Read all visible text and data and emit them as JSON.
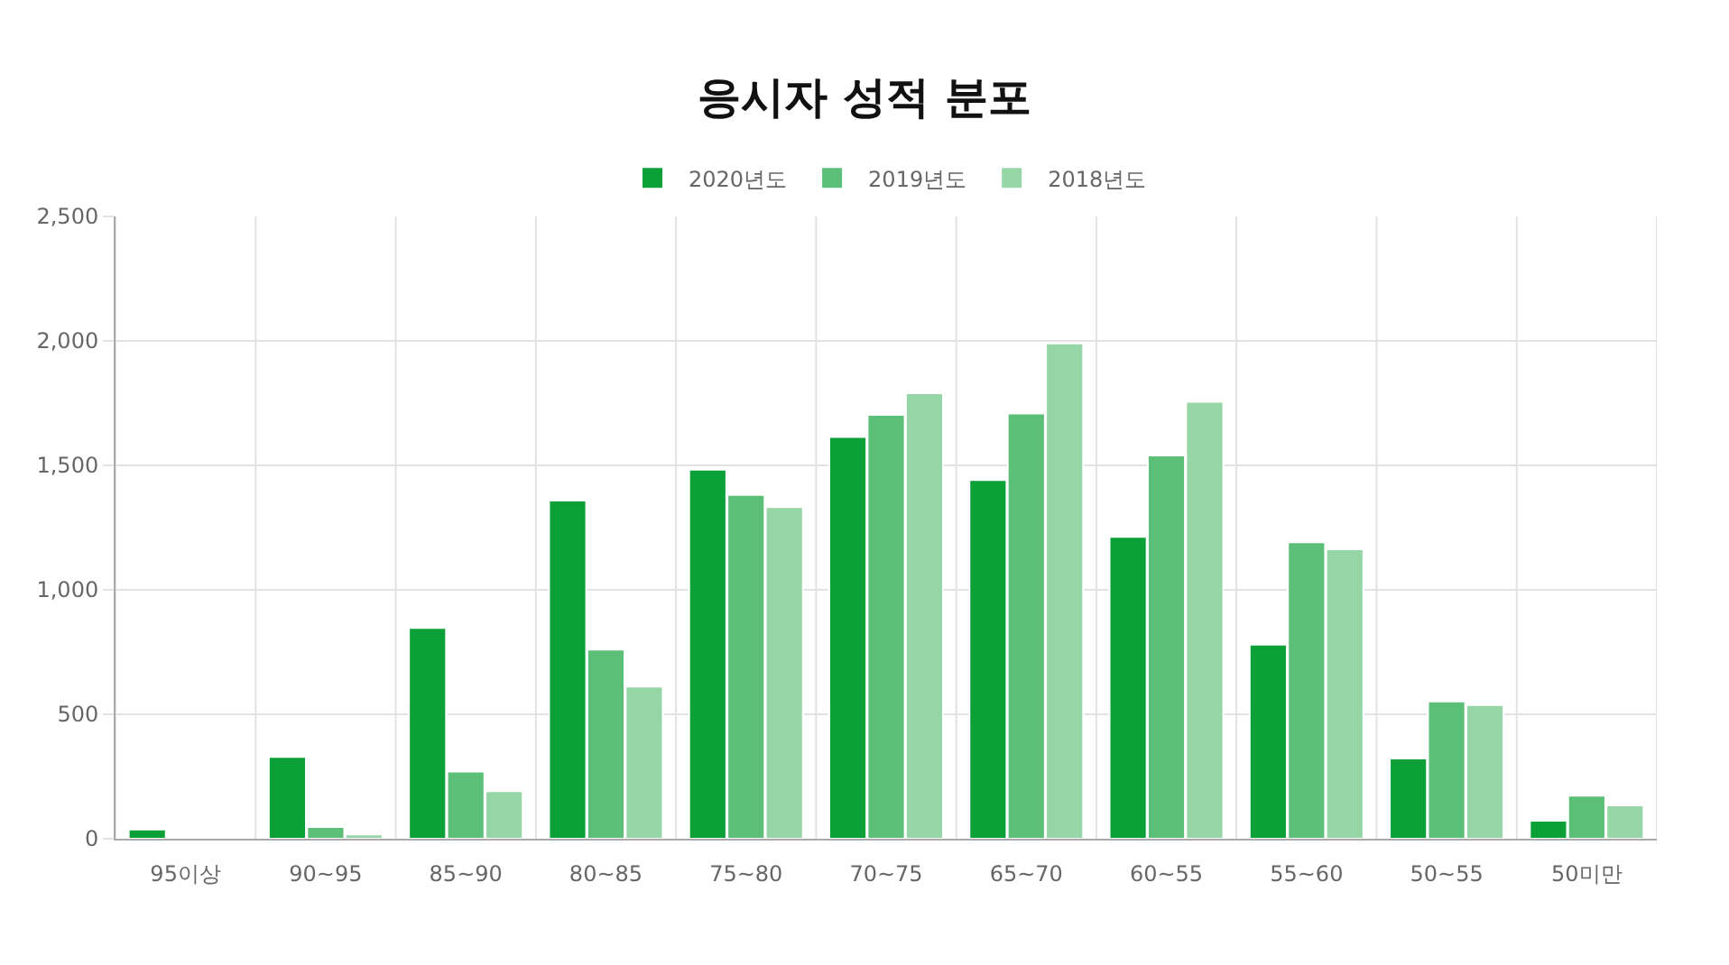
{
  "chart_data": {
    "type": "bar",
    "title": "응시자 성적 분포",
    "categories": [
      "95이상",
      "90~95",
      "85~90",
      "80~85",
      "75~80",
      "70~75",
      "65~70",
      "60~55",
      "55~60",
      "50~55",
      "50미만"
    ],
    "series": [
      {
        "name": "2020년도",
        "color": "#0ba038",
        "values": [
          37,
          329,
          847,
          1359,
          1483,
          1614,
          1441,
          1213,
          780,
          322,
          72
        ]
      },
      {
        "name": "2019년도",
        "color": "#5cbf78",
        "values": [
          3,
          47,
          270,
          760,
          1381,
          1703,
          1708,
          1540,
          1191,
          552,
          173
        ]
      },
      {
        "name": "2018년도",
        "color": "#96d6a6",
        "values": [
          2,
          17,
          191,
          611,
          1332,
          1790,
          1990,
          1755,
          1163,
          537,
          134
        ]
      }
    ],
    "ylim": [
      0,
      2500
    ],
    "yticks": [
      0,
      {
        "value": 500,
        "label": "500"
      },
      {
        "value": 1000,
        "label": "1,000"
      },
      {
        "value": 1500,
        "label": "1,500"
      },
      {
        "value": 2000,
        "label": "2,000"
      },
      {
        "value": 2500,
        "label": "2,500"
      }
    ],
    "grid": true,
    "legend": "top"
  }
}
